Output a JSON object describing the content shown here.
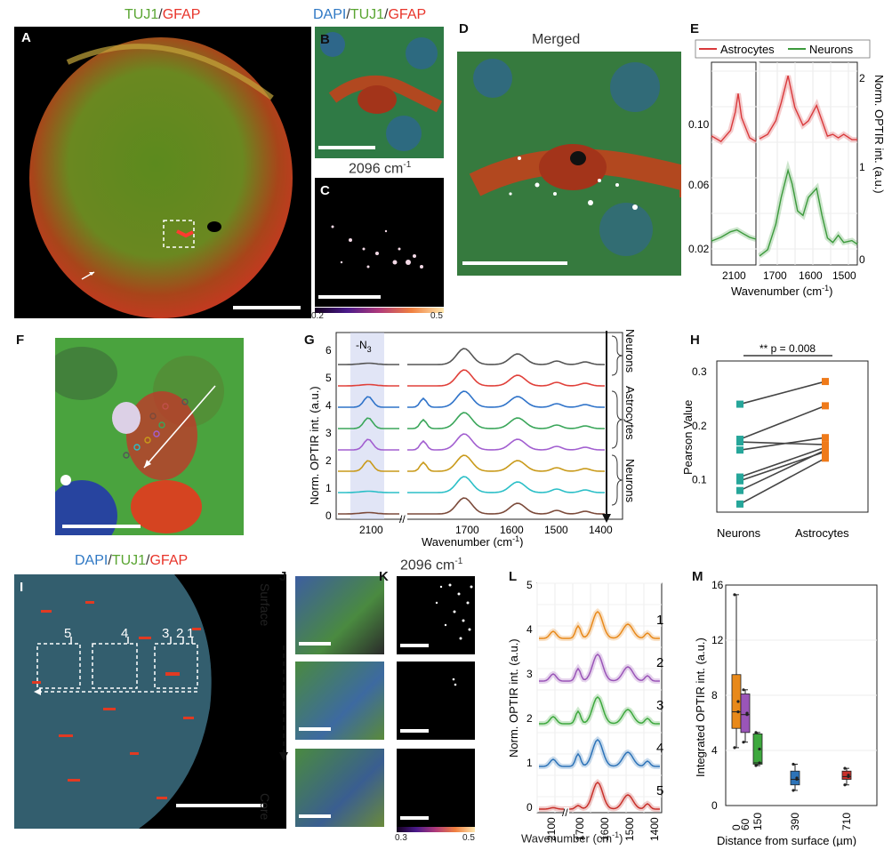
{
  "panels": {
    "A": {
      "letter": "A",
      "stain_green": "TUJ1",
      "stain_sep": "/",
      "stain_red": "GFAP"
    },
    "B": {
      "letter": "B",
      "stain_blue": "DAPI",
      "sep1": "/",
      "stain_green": "TUJ1",
      "sep2": "/",
      "stain_red": "GFAP"
    },
    "C": {
      "letter": "C",
      "title_main": "2096 cm",
      "title_sup": "-1",
      "cbar_min": "0.2",
      "cbar_max": "0.5"
    },
    "D": {
      "letter": "D",
      "title": "Merged"
    },
    "E": {
      "letter": "E"
    },
    "F": {
      "letter": "F"
    },
    "G": {
      "letter": "G"
    },
    "H": {
      "letter": "H"
    },
    "I": {
      "letter": "I",
      "stain_blue": "DAPI",
      "sep1": "/",
      "stain_green": "TUJ1",
      "sep2": "/",
      "stain_red": "GFAP",
      "roi_labels": [
        "5",
        "4",
        "3",
        "2",
        "1"
      ]
    },
    "J": {
      "letter": "J",
      "surface": "Surface",
      "core": "Core"
    },
    "K": {
      "letter": "K",
      "title_main": "2096 cm",
      "title_sup": "-1",
      "cbar_min": "0.3",
      "cbar_max": "0.5"
    },
    "L": {
      "letter": "L"
    },
    "M": {
      "letter": "M"
    }
  },
  "colors": {
    "astro": "#d9393b",
    "neuron": "#3c9a3c",
    "neurons_h": "#26a69a",
    "astro_h": "#ef7a1a",
    "spec": [
      "#7b4a3a",
      "#2bbfc7",
      "#c99a1a",
      "#a25fd0",
      "#3aa65a",
      "#2f73c9",
      "#e0403a",
      "#555555"
    ],
    "box": [
      "#e8891a",
      "#9a55b8",
      "#3da83d",
      "#2d73b8",
      "#c8302a"
    ]
  },
  "chart_data": [
    {
      "panel": "E",
      "type": "line",
      "legend": [
        "Astrocytes",
        "Neurons"
      ],
      "xlabel": "Wavenumber (cm-1)",
      "ylabel_right": "Norm. OPTIR int. (a.u.)",
      "left_yticks": [
        "0.10",
        "0.06",
        "0.02"
      ],
      "right_yticks": [
        "2",
        "1",
        "0"
      ],
      "xticks_left": [
        "2100"
      ],
      "xticks_right": [
        "1700",
        "1600",
        "1500"
      ],
      "series": [
        {
          "name": "Astrocytes",
          "x": [
            2180,
            2150,
            2120,
            2105,
            2096,
            2085,
            2060,
            2040
          ],
          "y": [
            0.075,
            0.072,
            0.078,
            0.088,
            0.098,
            0.085,
            0.074,
            0.072
          ],
          "x2": [
            1760,
            1730,
            1700,
            1680,
            1655,
            1630,
            1600,
            1580,
            1550,
            1530,
            1510,
            1490,
            1470,
            1450,
            1420,
            1400
          ],
          "y2": [
            1.35,
            1.4,
            1.55,
            1.75,
            2.05,
            1.7,
            1.5,
            1.55,
            1.72,
            1.55,
            1.38,
            1.4,
            1.36,
            1.4,
            1.34,
            1.34
          ]
        },
        {
          "name": "Neurons",
          "x": [
            2180,
            2150,
            2120,
            2100,
            2080,
            2060,
            2040
          ],
          "y": [
            0.018,
            0.02,
            0.023,
            0.024,
            0.022,
            0.02,
            0.019
          ],
          "x2": [
            1760,
            1730,
            1700,
            1680,
            1655,
            1640,
            1620,
            1600,
            1580,
            1550,
            1530,
            1510,
            1490,
            1470,
            1450,
            1420,
            1400
          ],
          "y2": [
            0.05,
            0.12,
            0.4,
            0.7,
            1.0,
            0.85,
            0.55,
            0.5,
            0.7,
            0.8,
            0.5,
            0.25,
            0.2,
            0.28,
            0.2,
            0.22,
            0.18
          ]
        }
      ]
    },
    {
      "panel": "G",
      "type": "line",
      "ylabel": "Norm. OPTIR int. (a.u.)",
      "xlabel": "Wavenumber (cm-1)",
      "band_label": "-N3",
      "yticks": [
        "0",
        "1",
        "2",
        "3",
        "4",
        "5",
        "6"
      ],
      "xticks": [
        "2100",
        "1700",
        "1600",
        "1500",
        "1400"
      ],
      "group_labels": [
        "Neurons",
        "Astrocytes",
        "Neurons"
      ],
      "n_spectra": 8
    },
    {
      "panel": "H",
      "type": "scatter",
      "title_annotation": "** p = 0.008",
      "ylabel": "Pearson Value",
      "categories": [
        "Neurons",
        "Astrocytes"
      ],
      "yticks": [
        "0.3",
        "0.2",
        "0.1"
      ],
      "ylim": [
        0.04,
        0.32
      ],
      "pairs": [
        [
          0.24,
          0.282
        ],
        [
          0.175,
          0.237
        ],
        [
          0.17,
          0.165
        ],
        [
          0.155,
          0.178
        ],
        [
          0.105,
          0.16
        ],
        [
          0.098,
          0.152
        ],
        [
          0.08,
          0.155
        ],
        [
          0.055,
          0.14
        ]
      ]
    },
    {
      "panel": "L",
      "type": "line",
      "ylabel": "Norm. OPTIR int. (a.u.)",
      "xlabel": "Wavenumber (cm-1)",
      "yticks": [
        "0",
        "1",
        "2",
        "3",
        "4",
        "5"
      ],
      "xticks": [
        "2100",
        "1700",
        "1600",
        "1500",
        "1400"
      ],
      "trace_labels": [
        "1",
        "2",
        "3",
        "4",
        "5"
      ]
    },
    {
      "panel": "M",
      "type": "box",
      "ylabel": "Integrated OPTIR int. (a.u.)",
      "xlabel": "Distance from surface (µm)",
      "categories": [
        "0",
        "60",
        "150",
        "390",
        "710"
      ],
      "yticks": [
        "0",
        "4",
        "8",
        "12",
        "16"
      ],
      "ylim": [
        0,
        16
      ],
      "boxes": [
        {
          "min": 4.2,
          "q1": 5.6,
          "median": 6.8,
          "q3": 9.5,
          "max": 15.3
        },
        {
          "min": 4.6,
          "q1": 5.3,
          "median": 6.6,
          "q3": 8.1,
          "max": 8.4
        },
        {
          "min": 2.9,
          "q1": 3.0,
          "median": 3.1,
          "q3": 5.2,
          "max": 5.3
        },
        {
          "min": 1.1,
          "q1": 1.5,
          "median": 1.9,
          "q3": 2.5,
          "max": 3.0
        },
        {
          "min": 1.5,
          "q1": 1.9,
          "median": 2.1,
          "q3": 2.5,
          "max": 2.7
        }
      ]
    }
  ]
}
